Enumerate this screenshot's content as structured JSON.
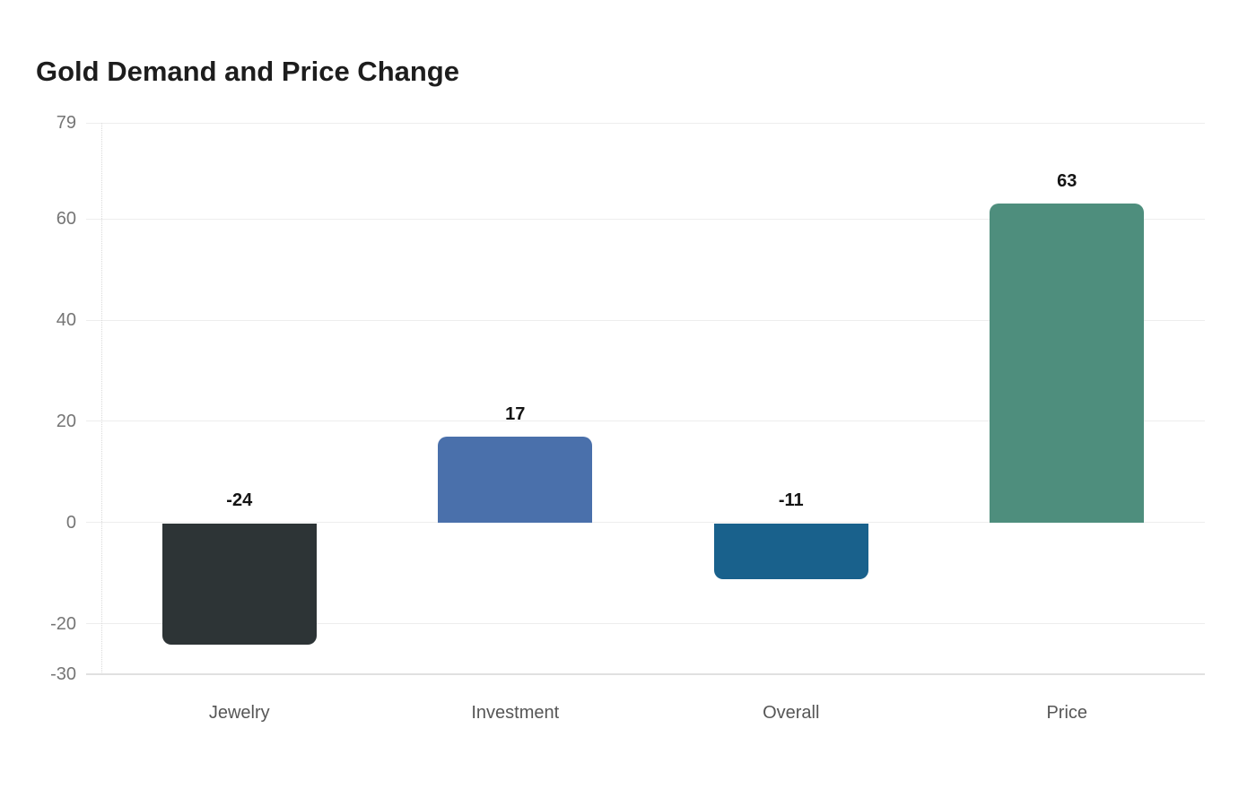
{
  "page": {
    "background_color": "#ffffff"
  },
  "chart_data": {
    "type": "bar",
    "title": "Gold Demand and Price Change",
    "categories": [
      "Jewelry",
      "Investment",
      "Overall",
      "Price"
    ],
    "values": [
      -24,
      17,
      -11,
      63
    ],
    "bar_value_labels": [
      "-24",
      "17",
      "-11",
      "63"
    ],
    "bar_colors": [
      "#2d3436",
      "#4a70ab",
      "#19618c",
      "#4e8e7d"
    ],
    "yticks": [
      79,
      60,
      40,
      20,
      0,
      -20,
      -30
    ],
    "ytick_labels": [
      "79",
      "60",
      "40",
      "20",
      "0",
      "-20",
      "-30"
    ],
    "ylim": [
      -30,
      79
    ],
    "xlabel": "",
    "ylabel": "",
    "grid": true,
    "legend": false,
    "colors": {
      "gridline": "#ededed",
      "bottom_line": "#e0e0e0",
      "axis_dotted_line": "#d9d9d9",
      "title_text": "#1d1d1d",
      "ytick_text": "#757575",
      "xtick_text": "#565656",
      "value_label_text": "#141414"
    }
  }
}
